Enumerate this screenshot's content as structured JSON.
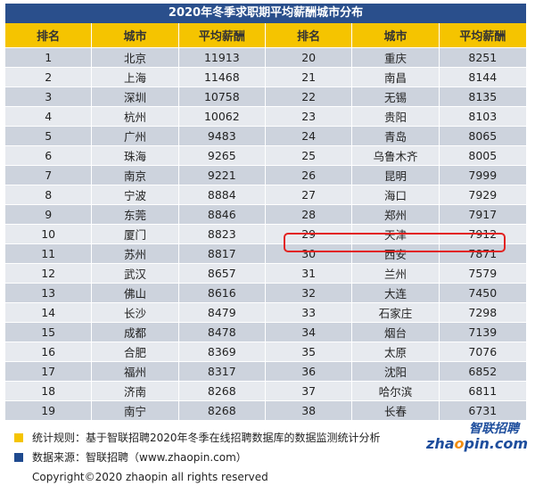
{
  "title": "2020年冬季求职期平均薪酬城市分布",
  "headers": [
    "排名",
    "城市",
    "平均薪酬",
    "排名",
    "城市",
    "平均薪酬"
  ],
  "rows": [
    [
      "1",
      "北京",
      "11913",
      "20",
      "重庆",
      "8251"
    ],
    [
      "2",
      "上海",
      "11468",
      "21",
      "南昌",
      "8144"
    ],
    [
      "3",
      "深圳",
      "10758",
      "22",
      "无锡",
      "8135"
    ],
    [
      "4",
      "杭州",
      "10062",
      "23",
      "贵阳",
      "8103"
    ],
    [
      "5",
      "广州",
      "9483",
      "24",
      "青岛",
      "8065"
    ],
    [
      "6",
      "珠海",
      "9265",
      "25",
      "乌鲁木齐",
      "8005"
    ],
    [
      "7",
      "南京",
      "9221",
      "26",
      "昆明",
      "7999"
    ],
    [
      "8",
      "宁波",
      "8884",
      "27",
      "海口",
      "7929"
    ],
    [
      "9",
      "东莞",
      "8846",
      "28",
      "郑州",
      "7917"
    ],
    [
      "10",
      "厦门",
      "8823",
      "29",
      "天津",
      "7912"
    ],
    [
      "11",
      "苏州",
      "8817",
      "30",
      "西安",
      "7871"
    ],
    [
      "12",
      "武汉",
      "8657",
      "31",
      "兰州",
      "7579"
    ],
    [
      "13",
      "佛山",
      "8616",
      "32",
      "大连",
      "7450"
    ],
    [
      "14",
      "长沙",
      "8479",
      "33",
      "石家庄",
      "7298"
    ],
    [
      "15",
      "成都",
      "8478",
      "34",
      "烟台",
      "7139"
    ],
    [
      "16",
      "合肥",
      "8369",
      "35",
      "太原",
      "7076"
    ],
    [
      "17",
      "福州",
      "8317",
      "36",
      "沈阳",
      "6852"
    ],
    [
      "18",
      "济南",
      "8268",
      "37",
      "哈尔滨",
      "6811"
    ],
    [
      "19",
      "南宁",
      "8268",
      "38",
      "长春",
      "6731"
    ]
  ],
  "footer": {
    "rule": "统计规则：基于智联招聘2020年冬季在线招聘数据库的数据监测统计分析",
    "source": "数据来源：智联招聘（www.zhaopin.com）",
    "copyright": "Copyright©2020 zhaopin all rights reserved"
  },
  "logo": {
    "cn": "智联招聘",
    "en_prefix": "zha",
    "en_o": "o",
    "en_suffix": "pin.com"
  },
  "colors": {
    "title_bg": "#2a4f8c",
    "header_bg": "#f5c400",
    "highlight_border": "#e2221f",
    "row_odd": "#cdd3dd",
    "row_even": "#e7eaef"
  }
}
